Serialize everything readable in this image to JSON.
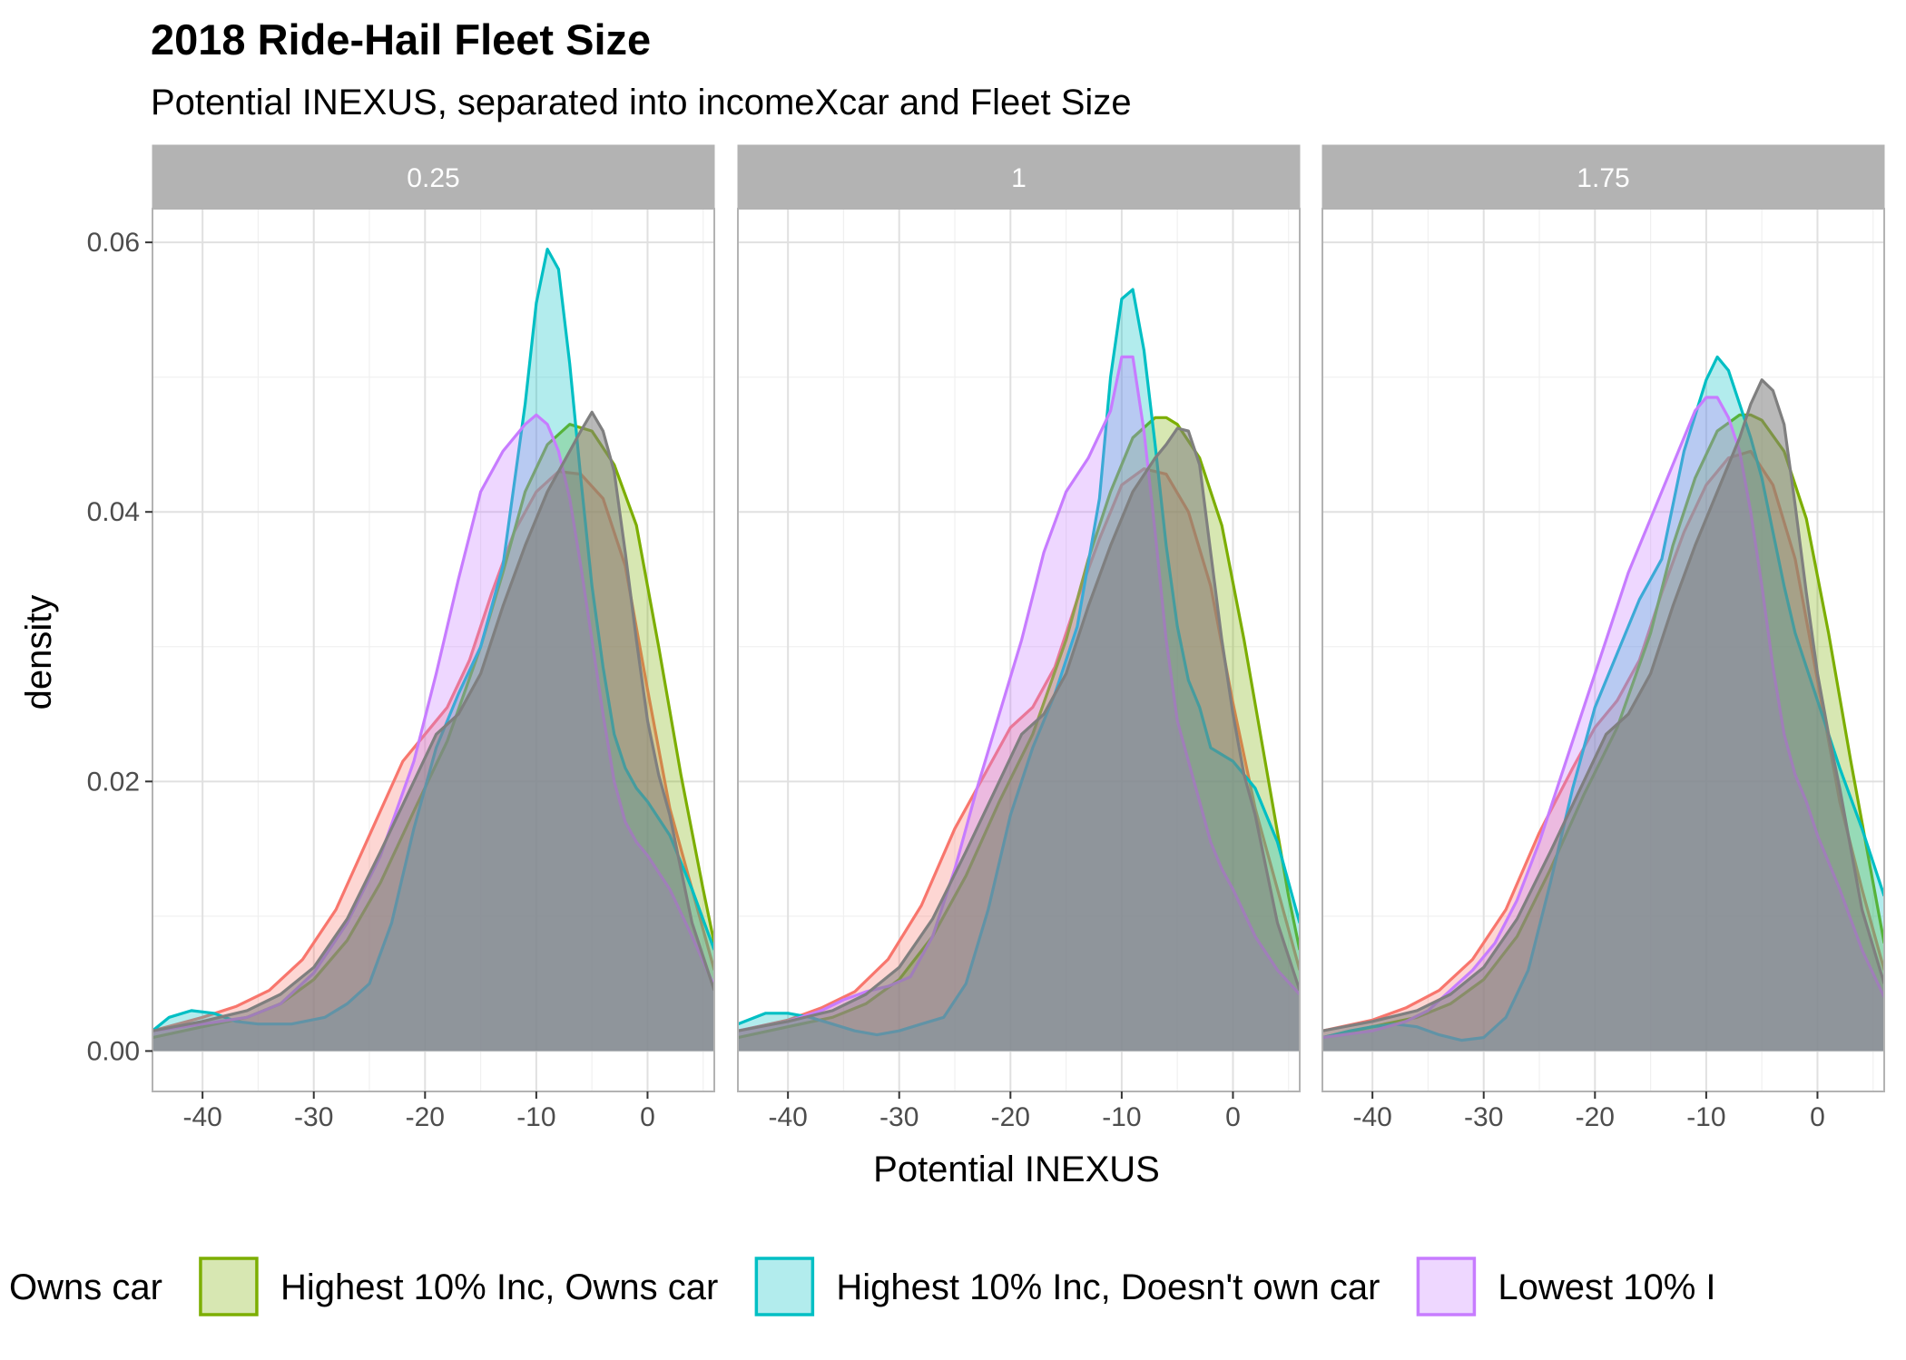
{
  "chart_data": {
    "type": "area",
    "chart_kind": "density",
    "title": "2018 Ride-Hail Fleet Size",
    "subtitle": "Potential INEXUS, separated into incomeXcar and Fleet Size",
    "xlabel": "Potential INEXUS",
    "ylabel": "density",
    "xlim": [
      -44.5,
      6
    ],
    "ylim": [
      -0.003,
      0.0625
    ],
    "x_ticks": [
      -40,
      -30,
      -20,
      -10,
      0
    ],
    "x_tick_labels": [
      "-40",
      "-30",
      "-20",
      "-10",
      "0"
    ],
    "y_ticks": [
      0,
      0.02,
      0.04,
      0.06
    ],
    "y_tick_labels": [
      "0.00",
      "0.02",
      "0.04",
      "0.06"
    ],
    "grid": true,
    "legend_position": "bottom",
    "series_order": [
      "lowest_owns",
      "highest_owns",
      "highest_noncar",
      "lowest_noncar",
      "all"
    ],
    "legend": [
      {
        "key": "lowest_owns",
        "label": "Owns car",
        "color": "#F8766D"
      },
      {
        "key": "highest_owns",
        "label": "Highest 10% Inc, Owns car",
        "color": "#7CAE00"
      },
      {
        "key": "highest_noncar",
        "label": "Highest 10% Inc, Doesn't own car",
        "color": "#00BFC4"
      },
      {
        "key": "lowest_noncar",
        "label": "Lowest 10% I",
        "color": "#C77CFF"
      }
    ],
    "colors": {
      "lowest_owns": "#F8766D",
      "highest_owns": "#7CAE00",
      "highest_noncar": "#00BFC4",
      "lowest_noncar": "#C77CFF",
      "all": "#7F7F7F"
    },
    "panels": [
      {
        "label": "0.25",
        "series": {
          "lowest_owns": {
            "x": [
              -44.5,
              -40,
              -37,
              -34,
              -31,
              -28,
              -25,
              -22,
              -20,
              -18,
              -16,
              -14,
              -12,
              -10,
              -8,
              -6,
              -4,
              -2,
              0,
              2,
              4,
              6
            ],
            "y": [
              0.0015,
              0.0025,
              0.0033,
              0.0045,
              0.0068,
              0.0105,
              0.016,
              0.0215,
              0.0235,
              0.0255,
              0.029,
              0.034,
              0.0385,
              0.0415,
              0.043,
              0.0428,
              0.041,
              0.036,
              0.0268,
              0.018,
              0.012,
              0.006
            ]
          },
          "highest_owns": {
            "x": [
              -44.5,
              -40,
              -36,
              -33,
              -30,
              -27,
              -24,
              -21,
              -18,
              -15,
              -13,
              -11,
              -9,
              -7,
              -5,
              -3,
              -1,
              1,
              3,
              5,
              6
            ],
            "y": [
              0.001,
              0.0018,
              0.0025,
              0.0035,
              0.0053,
              0.0082,
              0.0125,
              0.0178,
              0.023,
              0.03,
              0.0355,
              0.0415,
              0.045,
              0.0465,
              0.046,
              0.0435,
              0.039,
              0.03,
              0.0205,
              0.012,
              0.008
            ]
          },
          "highest_noncar": {
            "x": [
              -44.5,
              -43,
              -41,
              -39,
              -37,
              -35,
              -32,
              -29,
              -27,
              -25,
              -23,
              -21,
              -19,
              -17,
              -15,
              -13,
              -11,
              -10,
              -9,
              -8,
              -7,
              -6,
              -5,
              -4,
              -3,
              -2,
              -1,
              0,
              2,
              4,
              6
            ],
            "y": [
              0.0015,
              0.0025,
              0.003,
              0.0028,
              0.0022,
              0.002,
              0.002,
              0.0025,
              0.0035,
              0.005,
              0.0095,
              0.0165,
              0.0225,
              0.0265,
              0.03,
              0.036,
              0.048,
              0.0555,
              0.0595,
              0.058,
              0.051,
              0.0425,
              0.0345,
              0.0285,
              0.0235,
              0.021,
              0.0195,
              0.0185,
              0.016,
              0.012,
              0.0075
            ]
          },
          "lowest_noncar": {
            "x": [
              -44.5,
              -40,
              -36,
              -33,
              -30,
              -27,
              -24,
              -21,
              -19,
              -17,
              -15,
              -13,
              -11,
              -10,
              -9,
              -8,
              -7,
              -6,
              -5,
              -4,
              -3,
              -2,
              -1,
              0,
              2,
              4,
              6
            ],
            "y": [
              0.0015,
              0.002,
              0.0025,
              0.0035,
              0.0058,
              0.0095,
              0.0145,
              0.0215,
              0.028,
              0.035,
              0.0415,
              0.0445,
              0.0465,
              0.0472,
              0.0465,
              0.0445,
              0.041,
              0.036,
              0.0305,
              0.025,
              0.02,
              0.017,
              0.0155,
              0.0145,
              0.012,
              0.0085,
              0.0048
            ]
          },
          "all": {
            "x": [
              -44.5,
              -40,
              -36,
              -33,
              -30,
              -27,
              -24,
              -21,
              -19,
              -17,
              -15,
              -13,
              -11,
              -9,
              -7,
              -6,
              -5,
              -4,
              -3,
              -2,
              -1,
              0,
              1,
              2,
              3,
              4,
              6
            ],
            "y": [
              0.0015,
              0.0022,
              0.003,
              0.0042,
              0.0062,
              0.0098,
              0.0148,
              0.02,
              0.0235,
              0.025,
              0.028,
              0.033,
              0.0375,
              0.0415,
              0.0445,
              0.046,
              0.0474,
              0.046,
              0.043,
              0.037,
              0.0305,
              0.0245,
              0.0205,
              0.0175,
              0.0135,
              0.0095,
              0.0045
            ]
          }
        }
      },
      {
        "label": "1",
        "series": {
          "lowest_owns": {
            "x": [
              -44.5,
              -40,
              -37,
              -34,
              -31,
              -28,
              -25,
              -22,
              -20,
              -18,
              -16,
              -14,
              -12,
              -10,
              -8,
              -6,
              -4,
              -2,
              0,
              2,
              4,
              6
            ],
            "y": [
              0.0015,
              0.0023,
              0.0032,
              0.0044,
              0.0068,
              0.0108,
              0.0165,
              0.021,
              0.024,
              0.0255,
              0.0285,
              0.0335,
              0.038,
              0.042,
              0.0432,
              0.0428,
              0.04,
              0.0345,
              0.0258,
              0.018,
              0.012,
              0.006
            ]
          },
          "highest_owns": {
            "x": [
              -44.5,
              -40,
              -36,
              -33,
              -30,
              -27,
              -24,
              -21,
              -18,
              -15,
              -13,
              -11,
              -9,
              -7,
              -6,
              -5,
              -3,
              -1,
              1,
              3,
              5,
              6
            ],
            "y": [
              0.001,
              0.0018,
              0.0025,
              0.0035,
              0.0053,
              0.0085,
              0.013,
              0.0185,
              0.0235,
              0.0305,
              0.0365,
              0.0415,
              0.0455,
              0.047,
              0.047,
              0.0465,
              0.044,
              0.039,
              0.0305,
              0.021,
              0.0115,
              0.0075
            ]
          },
          "highest_noncar": {
            "x": [
              -44.5,
              -42,
              -40,
              -38,
              -36,
              -34,
              -32,
              -30,
              -28,
              -26,
              -24,
              -22,
              -20,
              -18,
              -16,
              -14,
              -12,
              -11,
              -10,
              -9,
              -8,
              -7,
              -6,
              -5,
              -4,
              -3,
              -2,
              0,
              2,
              4,
              6
            ],
            "y": [
              0.002,
              0.0028,
              0.0028,
              0.0025,
              0.002,
              0.0015,
              0.0012,
              0.0015,
              0.002,
              0.0025,
              0.005,
              0.0105,
              0.0175,
              0.0225,
              0.0265,
              0.0315,
              0.041,
              0.05,
              0.0558,
              0.0565,
              0.052,
              0.045,
              0.0375,
              0.0315,
              0.0275,
              0.0255,
              0.0225,
              0.0215,
              0.0195,
              0.0155,
              0.0095
            ]
          },
          "lowest_noncar": {
            "x": [
              -44.5,
              -40,
              -37,
              -35,
              -33,
              -31,
              -29,
              -27,
              -25,
              -23,
              -21,
              -19,
              -17,
              -15,
              -13,
              -11,
              -10,
              -9,
              -8,
              -7,
              -6,
              -5,
              -4,
              -3,
              -2,
              -1,
              0,
              2,
              4,
              6
            ],
            "y": [
              0.0015,
              0.0022,
              0.003,
              0.0038,
              0.0044,
              0.0048,
              0.0055,
              0.0085,
              0.0135,
              0.0195,
              0.025,
              0.0305,
              0.037,
              0.0415,
              0.044,
              0.0475,
              0.0515,
              0.0515,
              0.046,
              0.0385,
              0.0305,
              0.0245,
              0.0215,
              0.0185,
              0.0155,
              0.0135,
              0.012,
              0.0085,
              0.006,
              0.0042
            ]
          },
          "all": {
            "x": [
              -44.5,
              -40,
              -36,
              -33,
              -30,
              -27,
              -24,
              -21,
              -19,
              -17,
              -15,
              -13,
              -11,
              -9,
              -7,
              -6,
              -5,
              -4,
              -3,
              -2,
              -1,
              0,
              1,
              2,
              3,
              4,
              6
            ],
            "y": [
              0.0015,
              0.0022,
              0.003,
              0.0042,
              0.0062,
              0.0098,
              0.0148,
              0.02,
              0.0235,
              0.025,
              0.028,
              0.033,
              0.0375,
              0.0415,
              0.044,
              0.045,
              0.0462,
              0.046,
              0.0435,
              0.037,
              0.0305,
              0.025,
              0.0205,
              0.0175,
              0.0135,
              0.0095,
              0.0045
            ]
          }
        }
      },
      {
        "label": "1.75",
        "series": {
          "lowest_owns": {
            "x": [
              -44.5,
              -40,
              -37,
              -34,
              -31,
              -28,
              -25,
              -22,
              -20,
              -18,
              -16,
              -14,
              -12,
              -10,
              -8,
              -6,
              -4,
              -2,
              0,
              2,
              4,
              6
            ],
            "y": [
              0.0015,
              0.0023,
              0.0032,
              0.0045,
              0.0068,
              0.0105,
              0.0162,
              0.021,
              0.024,
              0.026,
              0.029,
              0.034,
              0.0385,
              0.042,
              0.044,
              0.0445,
              0.042,
              0.0365,
              0.0275,
              0.0185,
              0.012,
              0.006
            ]
          },
          "highest_owns": {
            "x": [
              -44.5,
              -40,
              -36,
              -33,
              -30,
              -27,
              -24,
              -21,
              -18,
              -15,
              -13,
              -11,
              -9,
              -7,
              -6,
              -5,
              -3,
              -1,
              1,
              3,
              5,
              6
            ],
            "y": [
              0.001,
              0.0018,
              0.0025,
              0.0035,
              0.0053,
              0.0085,
              0.0135,
              0.019,
              0.024,
              0.031,
              0.0375,
              0.0425,
              0.046,
              0.0472,
              0.0472,
              0.0468,
              0.0445,
              0.0395,
              0.031,
              0.0215,
              0.0125,
              0.008
            ]
          },
          "highest_noncar": {
            "x": [
              -44.5,
              -42,
              -40,
              -38,
              -36,
              -34,
              -32,
              -30,
              -28,
              -26,
              -24,
              -22,
              -20,
              -18,
              -16,
              -14,
              -12,
              -10,
              -9,
              -8,
              -7,
              -6,
              -5,
              -4,
              -3,
              -2,
              0,
              2,
              4,
              6
            ],
            "y": [
              0.001,
              0.0015,
              0.0018,
              0.002,
              0.0018,
              0.0012,
              0.0008,
              0.001,
              0.0025,
              0.006,
              0.0125,
              0.0195,
              0.0255,
              0.0295,
              0.0335,
              0.0365,
              0.0445,
              0.0498,
              0.0515,
              0.0505,
              0.048,
              0.0455,
              0.0425,
              0.0385,
              0.0345,
              0.031,
              0.026,
              0.021,
              0.0165,
              0.0115
            ]
          },
          "lowest_noncar": {
            "x": [
              -44.5,
              -40,
              -37,
              -35,
              -33,
              -31,
              -29,
              -27,
              -25,
              -23,
              -21,
              -19,
              -17,
              -15,
              -13,
              -11,
              -10,
              -9,
              -8,
              -7,
              -6,
              -5,
              -4,
              -3,
              -2,
              -1,
              0,
              2,
              4,
              6
            ],
            "y": [
              0.001,
              0.0015,
              0.0022,
              0.003,
              0.0045,
              0.006,
              0.008,
              0.0112,
              0.0155,
              0.0205,
              0.0255,
              0.0305,
              0.0355,
              0.0395,
              0.0435,
              0.0475,
              0.0485,
              0.0485,
              0.047,
              0.0445,
              0.04,
              0.0345,
              0.0285,
              0.0235,
              0.0205,
              0.0185,
              0.016,
              0.012,
              0.0075,
              0.004
            ]
          },
          "all": {
            "x": [
              -44.5,
              -40,
              -36,
              -33,
              -30,
              -27,
              -24,
              -21,
              -19,
              -17,
              -15,
              -13,
              -11,
              -9,
              -7,
              -6,
              -5,
              -4,
              -3,
              -2,
              -1,
              0,
              1,
              2,
              3,
              4,
              6
            ],
            "y": [
              0.0015,
              0.0022,
              0.003,
              0.0042,
              0.0062,
              0.0098,
              0.0148,
              0.02,
              0.0235,
              0.025,
              0.028,
              0.033,
              0.0375,
              0.0415,
              0.0455,
              0.048,
              0.0498,
              0.049,
              0.0465,
              0.0405,
              0.034,
              0.028,
              0.0235,
              0.0195,
              0.015,
              0.0105,
              0.005
            ]
          }
        }
      }
    ]
  }
}
